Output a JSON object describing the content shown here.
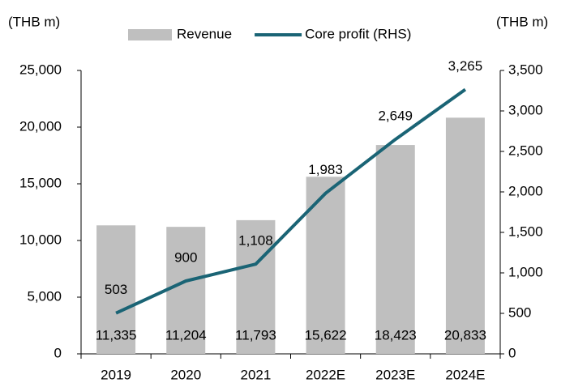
{
  "chart_data": {
    "type": "combo",
    "y_label": "(THB m)",
    "y2_label": "(THB m)",
    "categories": [
      "2019",
      "2020",
      "2021",
      "2022E",
      "2023E",
      "2024E"
    ],
    "series": [
      {
        "name": "Revenue",
        "type": "bar",
        "color": "#bfbfbf",
        "axis": "y",
        "values": [
          11335,
          11204,
          11793,
          15622,
          18423,
          20833
        ],
        "value_labels": [
          "11,335",
          "11,204",
          "11,793",
          "15,622",
          "18,423",
          "20,833"
        ]
      },
      {
        "name": "Core profit (RHS)",
        "type": "line",
        "color": "#1a6475",
        "axis": "y2",
        "values": [
          503,
          900,
          1108,
          1983,
          2649,
          3265
        ],
        "value_labels": [
          "503",
          "900",
          "1,108",
          "1,983",
          "2,649",
          "3,265"
        ]
      }
    ],
    "ylim": [
      0,
      25000
    ],
    "yticks": [
      0,
      {
        "value": 5000,
        "label": "5,000"
      },
      {
        "value": 10000,
        "label": "10,000"
      },
      {
        "value": 15000,
        "label": "15,000"
      },
      {
        "value": 20000,
        "label": "20,000"
      },
      {
        "value": 25000,
        "label": "25,000"
      }
    ],
    "y2lim": [
      0,
      3500
    ],
    "y2ticks": [
      0,
      500,
      {
        "value": 1000,
        "label": "1,000"
      },
      {
        "value": 1500,
        "label": "1,500"
      },
      {
        "value": 2000,
        "label": "2,000"
      },
      {
        "value": 2500,
        "label": "2,500"
      },
      {
        "value": 3000,
        "label": "3,000"
      },
      {
        "value": 3500,
        "label": "3,500"
      }
    ],
    "grid": false,
    "legend": "top"
  }
}
